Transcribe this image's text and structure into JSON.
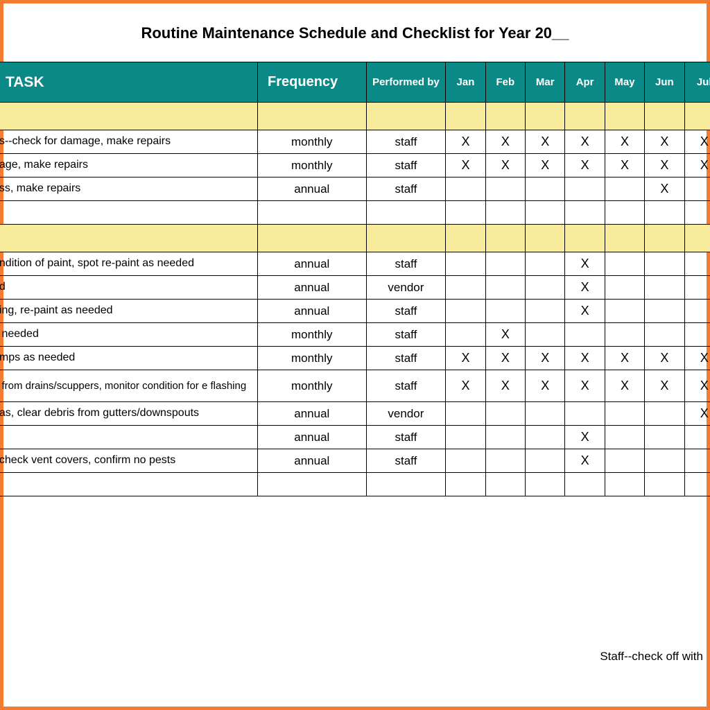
{
  "title": "Routine Maintenance Schedule and Checklist for Year 20__",
  "columns": {
    "task": "TASK",
    "frequency": "Frequency",
    "performed_by": "Performed by",
    "months": [
      "Jan",
      "Feb",
      "Mar",
      "Apr",
      "May",
      "Jun",
      "Jul"
    ]
  },
  "colors": {
    "frame_border": "#f47c32",
    "header_bg": "#0a8987",
    "header_text": "#ffffff",
    "section_bg": "#f6ec9b",
    "cell_border": "#000000",
    "background": "#ffffff"
  },
  "mark": "X",
  "rows": [
    {
      "type": "section"
    },
    {
      "type": "data",
      "task": "as--check for damage, make repairs",
      "frequency": "monthly",
      "performed_by": "staff",
      "marks": [
        true,
        true,
        true,
        true,
        true,
        true,
        true
      ]
    },
    {
      "type": "data",
      "task": "nage, make repairs",
      "frequency": "monthly",
      "performed_by": "staff",
      "marks": [
        true,
        true,
        true,
        true,
        true,
        true,
        true
      ]
    },
    {
      "type": "data",
      "task": "ess, make repairs",
      "frequency": "annual",
      "performed_by": "staff",
      "marks": [
        false,
        false,
        false,
        false,
        false,
        true,
        false
      ]
    },
    {
      "type": "data",
      "task": "",
      "frequency": "",
      "performed_by": "",
      "marks": [
        false,
        false,
        false,
        false,
        false,
        false,
        false
      ]
    },
    {
      "type": "section"
    },
    {
      "type": "data",
      "task": "ondition of paint, spot re-paint as needed",
      "frequency": "annual",
      "performed_by": "staff",
      "marks": [
        false,
        false,
        false,
        true,
        false,
        false,
        false
      ]
    },
    {
      "type": "data",
      "task": "ed",
      "frequency": "annual",
      "performed_by": "vendor",
      "marks": [
        false,
        false,
        false,
        true,
        false,
        false,
        false
      ]
    },
    {
      "type": "data",
      "task": "oing, re-paint as needed",
      "frequency": "annual",
      "performed_by": "staff",
      "marks": [
        false,
        false,
        false,
        true,
        false,
        false,
        false
      ]
    },
    {
      "type": "data",
      "task": "s needed",
      "frequency": "monthly",
      "performed_by": "staff",
      "marks": [
        false,
        true,
        false,
        false,
        false,
        false,
        false
      ]
    },
    {
      "type": "data",
      "task": "amps as needed",
      "frequency": "monthly",
      "performed_by": "staff",
      "marks": [
        true,
        true,
        true,
        true,
        true,
        true,
        true
      ]
    },
    {
      "type": "data",
      "task": "d from drains/scuppers, monitor condition for e flashing",
      "frequency": "monthly",
      "performed_by": "staff",
      "marks": [
        true,
        true,
        true,
        true,
        true,
        true,
        true
      ],
      "twoLine": true
    },
    {
      "type": "data",
      "task": "eas, clear debris from gutters/downspouts",
      "frequency": "annual",
      "performed_by": "vendor",
      "marks": [
        false,
        false,
        false,
        false,
        false,
        false,
        true
      ]
    },
    {
      "type": "data",
      "task": "",
      "frequency": "annual",
      "performed_by": "staff",
      "marks": [
        false,
        false,
        false,
        true,
        false,
        false,
        false
      ]
    },
    {
      "type": "data",
      "task": ", check vent covers, confirm no pests",
      "frequency": "annual",
      "performed_by": "staff",
      "marks": [
        false,
        false,
        false,
        true,
        false,
        false,
        false
      ]
    },
    {
      "type": "data",
      "task": "",
      "frequency": "",
      "performed_by": "",
      "marks": [
        false,
        false,
        false,
        false,
        false,
        false,
        false
      ]
    }
  ],
  "footer_note": "Staff--check off with"
}
